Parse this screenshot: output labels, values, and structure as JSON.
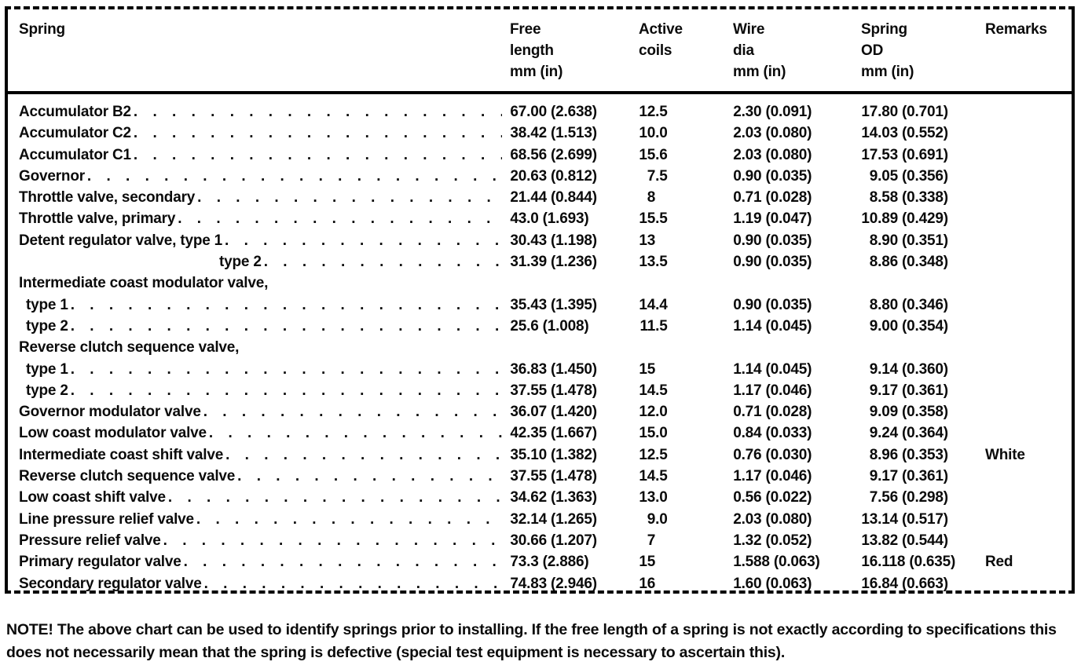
{
  "document": {
    "kind": "scanned-spring-specification-table"
  },
  "table": {
    "headers": [
      "Spring",
      "Free\nlength\nmm (in)",
      "Active\ncoils",
      "Wire\ndia\nmm (in)",
      "Spring\nOD\nmm (in)",
      "Remarks"
    ],
    "rows": [
      {
        "name": "Accumulator B2",
        "indent": 0,
        "group": false,
        "free": "67.00 (2.638)",
        "coils": "12.5",
        "wire": "2.30 (0.091)",
        "od": "17.80 (0.701)",
        "remarks": ""
      },
      {
        "name": "Accumulator C2",
        "indent": 0,
        "group": false,
        "free": "38.42 (1.513)",
        "coils": "10.0",
        "wire": "2.03 (0.080)",
        "od": "14.03 (0.552)",
        "remarks": ""
      },
      {
        "name": "Accumulator C1",
        "indent": 0,
        "group": false,
        "free": "68.56 (2.699)",
        "coils": "15.6",
        "wire": "2.03 (0.080)",
        "od": "17.53 (0.691)",
        "remarks": ""
      },
      {
        "name": "Governor",
        "indent": 0,
        "group": false,
        "free": "20.63 (0.812)",
        "coils": "7.5",
        "wire": "0.90 (0.035)",
        "od": "9.05 (0.356)",
        "remarks": ""
      },
      {
        "name": "Throttle valve, secondary",
        "indent": 0,
        "group": false,
        "free": "21.44 (0.844)",
        "coils": "8",
        "wire": "0.71 (0.028)",
        "od": "8.58 (0.338)",
        "remarks": ""
      },
      {
        "name": "Throttle valve, primary",
        "indent": 0,
        "group": false,
        "free": "43.0 (1.693)",
        "coils": "15.5",
        "wire": "1.19 (0.047)",
        "od": "10.89 (0.429)",
        "remarks": ""
      },
      {
        "name": "Detent regulator valve, type 1",
        "indent": 0,
        "group": false,
        "free": "30.43 (1.198)",
        "coils": "13",
        "wire": "0.90 (0.035)",
        "od": "8.90 (0.351)",
        "remarks": ""
      },
      {
        "name": "type 2",
        "indent": 2,
        "group": false,
        "free": "31.39 (1.236)",
        "coils": "13.5",
        "wire": "0.90 (0.035)",
        "od": "8.86 (0.348)",
        "remarks": ""
      },
      {
        "name": "Intermediate coast modulator valve,",
        "indent": 0,
        "group": true,
        "free": "",
        "coils": "",
        "wire": "",
        "od": "",
        "remarks": ""
      },
      {
        "name": "type 1",
        "indent": 1,
        "group": false,
        "free": "35.43 (1.395)",
        "coils": "14.4",
        "wire": "0.90 (0.035)",
        "od": "8.80 (0.346)",
        "remarks": ""
      },
      {
        "name": "type 2",
        "indent": 1,
        "group": false,
        "free": "25.6 (1.008)",
        "coils": "11.5",
        "wire": "1.14 (0.045)",
        "od": "9.00 (0.354)",
        "remarks": ""
      },
      {
        "name": "Reverse clutch sequence valve,",
        "indent": 0,
        "group": true,
        "free": "",
        "coils": "",
        "wire": "",
        "od": "",
        "remarks": ""
      },
      {
        "name": "type 1",
        "indent": 1,
        "group": false,
        "free": "36.83 (1.450)",
        "coils": "15",
        "wire": "1.14 (0.045)",
        "od": "9.14 (0.360)",
        "remarks": ""
      },
      {
        "name": "type 2",
        "indent": 1,
        "group": false,
        "free": "37.55 (1.478)",
        "coils": "14.5",
        "wire": "1.17 (0.046)",
        "od": "9.17 (0.361)",
        "remarks": ""
      },
      {
        "name": "Governor modulator valve",
        "indent": 0,
        "group": false,
        "free": "36.07 (1.420)",
        "coils": "12.0",
        "wire": "0.71 (0.028)",
        "od": "9.09 (0.358)",
        "remarks": ""
      },
      {
        "name": "Low coast modulator valve",
        "indent": 0,
        "group": false,
        "free": "42.35 (1.667)",
        "coils": "15.0",
        "wire": "0.84 (0.033)",
        "od": "9.24 (0.364)",
        "remarks": ""
      },
      {
        "name": "Intermediate coast shift valve",
        "indent": 0,
        "group": false,
        "free": "35.10 (1.382)",
        "coils": "12.5",
        "wire": "0.76 (0.030)",
        "od": "8.96 (0.353)",
        "remarks": "White"
      },
      {
        "name": "Reverse clutch sequence valve",
        "indent": 0,
        "group": false,
        "free": "37.55 (1.478)",
        "coils": "14.5",
        "wire": "1.17 (0.046)",
        "od": "9.17 (0.361)",
        "remarks": ""
      },
      {
        "name": "Low coast shift valve",
        "indent": 0,
        "group": false,
        "free": "34.62 (1.363)",
        "coils": "13.0",
        "wire": "0.56 (0.022)",
        "od": "7.56 (0.298)",
        "remarks": ""
      },
      {
        "name": "Line pressure relief valve",
        "indent": 0,
        "group": false,
        "free": "32.14 (1.265)",
        "coils": "9.0",
        "wire": "2.03 (0.080)",
        "od": "13.14 (0.517)",
        "remarks": ""
      },
      {
        "name": "Pressure relief valve",
        "indent": 0,
        "group": false,
        "free": "30.66 (1.207)",
        "coils": "7",
        "wire": "1.32 (0.052)",
        "od": "13.82 (0.544)",
        "remarks": ""
      },
      {
        "name": "Primary regulator valve",
        "indent": 0,
        "group": false,
        "free": "73.3 (2.886)",
        "coils": "15",
        "wire": "1.588 (0.063)",
        "od": "16.118 (0.635)",
        "remarks": "Red"
      },
      {
        "name": "Secondary regulator valve",
        "indent": 0,
        "group": false,
        "free": "74.83 (2.946)",
        "coils": "16",
        "wire": "1.60 (0.063)",
        "od": "16.84 (0.663)",
        "remarks": ""
      }
    ]
  },
  "note": {
    "prefix": "NOTE!",
    "body": " The above chart can be used to identify springs prior to installing. If the free length of a spring is not exactly according to specifications this does not necessarily mean that the spring is defective (special test equipment is necessary to ascertain this)."
  }
}
